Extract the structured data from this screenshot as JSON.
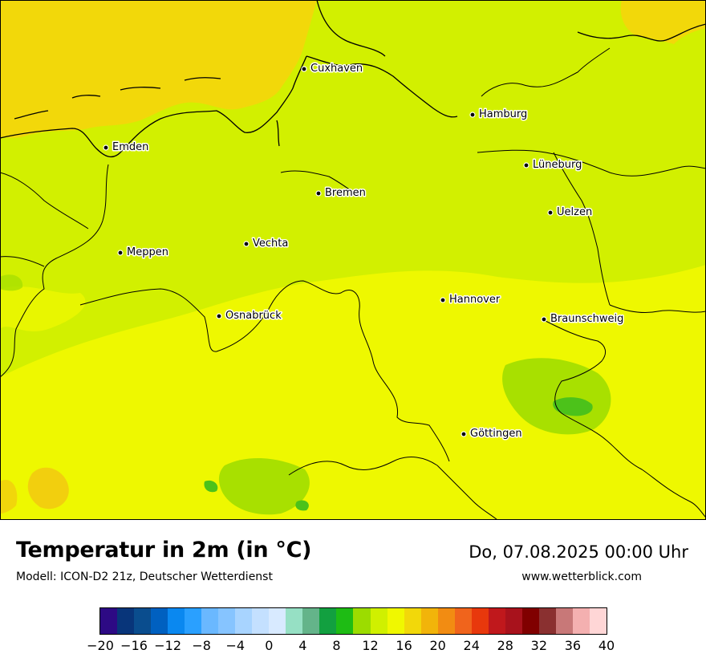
{
  "map": {
    "title": "Temperatur in 2m (in °C)",
    "model": "Modell: ICON-D2 21z, Deutscher Wetterdienst",
    "valid_time": "Do, 07.08.2025 00:00 Uhr",
    "website": "www.wetterblick.com",
    "cities": [
      {
        "name": "Cuxhaven"
      },
      {
        "name": "Hamburg"
      },
      {
        "name": "Emden"
      },
      {
        "name": "Lüneburg"
      },
      {
        "name": "Bremen"
      },
      {
        "name": "Uelzen"
      },
      {
        "name": "Vechta"
      },
      {
        "name": "Meppen"
      },
      {
        "name": "Hannover"
      },
      {
        "name": "Osnabrück"
      },
      {
        "name": "Braunschweig"
      },
      {
        "name": "Göttingen"
      }
    ]
  },
  "colors": {
    "sea_warm": "#f2d80a",
    "land_main": "#d2f000",
    "land_south": "#eef800",
    "land_green": "#a8e000",
    "land_green_dark": "#4cc21a",
    "land_orange": "#f2c810",
    "border": "#000000"
  },
  "legend": {
    "tick_labels": [
      "−20",
      "−16",
      "−12",
      "−8",
      "−4",
      "0",
      "4",
      "8",
      "12",
      "16",
      "20",
      "24",
      "28",
      "32",
      "36",
      "40"
    ],
    "colors": [
      "#2d0a84",
      "#08357a",
      "#0a4d8e",
      "#0060c0",
      "#0a88f0",
      "#2aa0ff",
      "#6ab8ff",
      "#86c4ff",
      "#a8d4ff",
      "#c4e0ff",
      "#d8eaff",
      "#96e0c4",
      "#64b48a",
      "#12a040",
      "#1ebc14",
      "#9cdc00",
      "#d0f000",
      "#f0f800",
      "#f2d80a",
      "#f2b40a",
      "#f28c12",
      "#f0641c",
      "#e8380c",
      "#c0181c",
      "#a8121c",
      "#800000",
      "#8a3030",
      "#c87878",
      "#f4b0b0",
      "#ffd6d6"
    ]
  }
}
